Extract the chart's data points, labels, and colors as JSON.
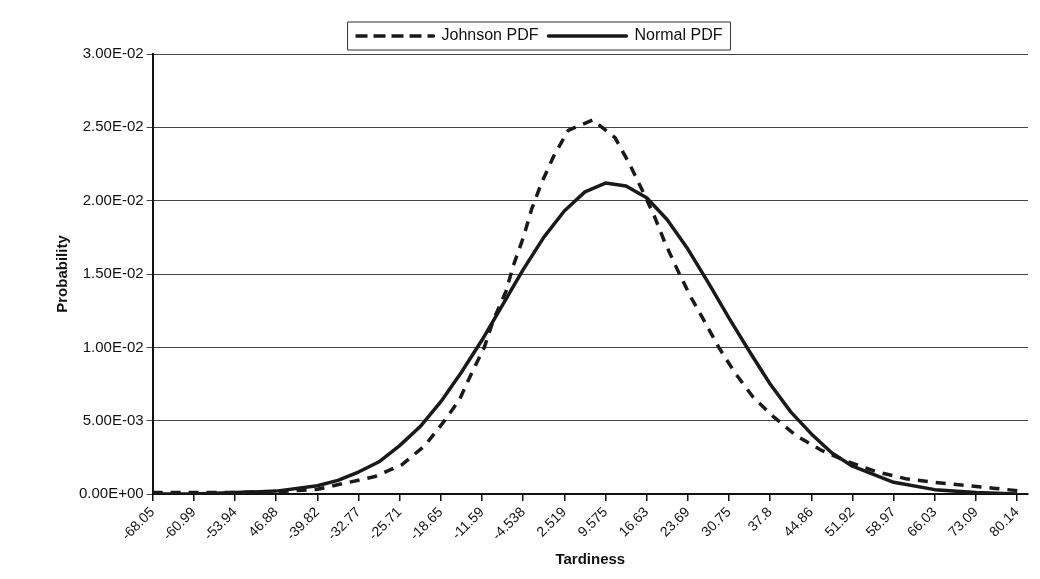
{
  "chart_data": {
    "type": "line",
    "xlabel": "Tardiness",
    "ylabel": "Probability",
    "xlim": [
      -68.05,
      82
    ],
    "xticks": [
      -68.05,
      -60.99,
      -53.94,
      {
        "value": -46.88,
        "label": "46.88"
      },
      -39.82,
      -32.77,
      -25.71,
      -18.65,
      -11.59,
      -4.538,
      2.519,
      9.575,
      16.63,
      23.69,
      30.75,
      37.8,
      44.86,
      51.92,
      58.97,
      66.03,
      73.09,
      80.14
    ],
    "ylim": [
      0,
      0.03
    ],
    "yticks": [
      {
        "value": 0,
        "label": "0.00E+00"
      },
      {
        "value": 0.005,
        "label": "5.00E-03"
      },
      {
        "value": 0.01,
        "label": "1.00E-02"
      },
      {
        "value": 0.015,
        "label": "1.50E-02"
      },
      {
        "value": 0.02,
        "label": "2.00E-02"
      },
      {
        "value": 0.025,
        "label": "2.50E-02"
      },
      {
        "value": 0.03,
        "label": "3.00E-02"
      }
    ],
    "grid": "y",
    "legend": "top",
    "marker": "none",
    "series": [
      {
        "name": "Johnson PDF",
        "color": "#1a1a1a",
        "line_style": "dashed",
        "x": [
          -68.05,
          -60.99,
          -53.94,
          -46.88,
          -39.8,
          -35.0,
          -29.9,
          -25.3,
          -21.4,
          -18.4,
          -15.5,
          -13.3,
          -11.2,
          -9.6,
          -7.5,
          -6.2,
          -4.5,
          -3.1,
          -1.4,
          0.65,
          3.2,
          7.4,
          11.2,
          13.7,
          15.9,
          18.0,
          19.8,
          21.9,
          24.1,
          26.5,
          29.0,
          31.7,
          34.9,
          38.3,
          42.2,
          46.5,
          51.1,
          56.2,
          61.0,
          66.0,
          71.1,
          76.0,
          81.0
        ],
        "values": [
          0.0001,
          0.0001,
          0.0001,
          0.00015,
          0.00033,
          0.00075,
          0.0012,
          0.002,
          0.0033,
          0.0048,
          0.0064,
          0.0083,
          0.01,
          0.0119,
          0.0138,
          0.0156,
          0.0175,
          0.0194,
          0.0212,
          0.023,
          0.0248,
          0.0255,
          0.0243,
          0.0225,
          0.0207,
          0.0189,
          0.0171,
          0.0153,
          0.0135,
          0.0118,
          0.01,
          0.0083,
          0.0066,
          0.0053,
          0.004,
          0.003,
          0.0022,
          0.0015,
          0.00105,
          0.0008,
          0.0006,
          0.0004,
          0.0002
        ]
      },
      {
        "name": "Normal PDF",
        "color": "#1a1a1a",
        "line_style": "solid",
        "x": [
          -68.05,
          -60.99,
          -53.94,
          -46.88,
          -39.82,
          -36.3,
          -32.77,
          -29.24,
          -25.71,
          -22.18,
          -18.65,
          -15.12,
          -11.59,
          -8.06,
          -4.538,
          -1.01,
          2.519,
          6.05,
          9.575,
          13.1,
          16.63,
          20.16,
          23.69,
          27.22,
          30.75,
          34.28,
          37.8,
          41.33,
          44.86,
          48.39,
          51.92,
          58.97,
          66.03,
          73.09,
          80.14
        ],
        "values": [
          0.0,
          0.0,
          0.0001,
          0.0002,
          0.00057,
          0.00093,
          0.0015,
          0.0022,
          0.0033,
          0.0046,
          0.0063,
          0.0083,
          0.0105,
          0.0129,
          0.0153,
          0.0175,
          0.0193,
          0.0206,
          0.0212,
          0.021,
          0.0202,
          0.0187,
          0.0167,
          0.0144,
          0.012,
          0.0097,
          0.0075,
          0.0056,
          0.0041,
          0.0028,
          0.0019,
          0.0008,
          0.0003,
          0.0001,
          0.0
        ]
      }
    ]
  }
}
